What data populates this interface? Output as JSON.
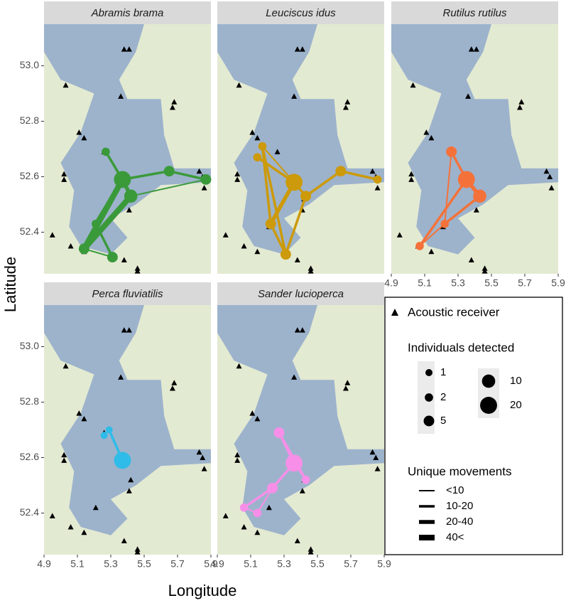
{
  "chart_data": {
    "type": "map",
    "xlabel": "Longitude",
    "ylabel": "Latitude",
    "xlim": [
      4.9,
      5.9
    ],
    "ylim": [
      52.25,
      53.15
    ],
    "xticks": [
      4.9,
      5.1,
      5.3,
      5.5,
      5.7,
      5.9
    ],
    "yticks": [
      52.4,
      52.6,
      52.8,
      {
        "value": 53,
        "label": "53.0"
      }
    ],
    "receivers": {
      "name": "Acoustic receiver",
      "lon": [
        5.38,
        5.41,
        5.03,
        5.36,
        5.68,
        5.67,
        5.11,
        5.14,
        5.26,
        5.02,
        5.02,
        5.83,
        5.85,
        5.86,
        5.42,
        5.41,
        5.21,
        4.95,
        5.06,
        5.14,
        5.38,
        5.46,
        5.46
      ],
      "lat": [
        53.06,
        53.06,
        52.93,
        52.89,
        52.87,
        52.85,
        52.76,
        52.74,
        52.69,
        52.61,
        52.59,
        52.62,
        52.6,
        52.56,
        52.52,
        52.48,
        52.42,
        52.39,
        52.35,
        52.33,
        52.3,
        52.27,
        52.26
      ]
    },
    "size_legend": {
      "title": "Individuals detected",
      "values": [
        1,
        2,
        5,
        10,
        20
      ]
    },
    "width_legend": {
      "title": "Unique movements",
      "labels": [
        "<10",
        "10-20",
        "20-40",
        "40<"
      ]
    },
    "facets": [
      {
        "title": "Abramis brama",
        "color": "#3a9a3a",
        "nodes": {
          "lon": [
            5.37,
            5.42,
            5.65,
            5.87,
            5.27,
            5.14,
            5.31,
            5.21
          ],
          "lat": [
            52.59,
            52.53,
            52.62,
            52.59,
            52.69,
            52.34,
            52.31,
            52.43
          ],
          "size": [
            20,
            10,
            5,
            5,
            2,
            5,
            5,
            2
          ]
        },
        "edges": {
          "from": [
            0,
            1,
            0,
            7,
            5,
            0,
            2,
            1,
            4,
            4,
            0
          ],
          "to": [
            5,
            5,
            7,
            6,
            6,
            2,
            3,
            3,
            0,
            1,
            1
          ],
          "class": [
            3,
            3,
            2,
            1,
            0,
            1,
            1,
            0,
            1,
            0,
            2
          ]
        }
      },
      {
        "title": "Leuciscus idus",
        "color": "#cc9a0a",
        "nodes": {
          "lon": [
            5.36,
            5.43,
            5.64,
            5.86,
            5.17,
            5.14,
            5.22,
            5.31
          ],
          "lat": [
            52.58,
            52.53,
            52.62,
            52.59,
            52.71,
            52.67,
            52.43,
            52.32
          ],
          "size": [
            20,
            5,
            5,
            2,
            2,
            2,
            5,
            5
          ]
        },
        "edges": {
          "from": [
            0,
            1,
            2,
            4,
            4,
            5,
            6,
            1,
            0,
            4
          ],
          "to": [
            6,
            2,
            3,
            6,
            7,
            0,
            7,
            7,
            1,
            0
          ],
          "class": [
            2,
            1,
            1,
            1,
            1,
            1,
            1,
            1,
            1,
            0
          ]
        }
      },
      {
        "title": "Rutilus rutilus",
        "color": "#f4723a",
        "nodes": {
          "lon": [
            5.35,
            5.43,
            5.26,
            5.22,
            5.07
          ],
          "lat": [
            52.59,
            52.53,
            52.69,
            52.43,
            52.35
          ],
          "size": [
            20,
            10,
            5,
            2,
            2
          ]
        },
        "edges": {
          "from": [
            0,
            1,
            2,
            2,
            0,
            3
          ],
          "to": [
            1,
            3,
            0,
            3,
            4,
            4
          ],
          "class": [
            2,
            1,
            1,
            0,
            1,
            0
          ]
        }
      },
      {
        "title": "Perca fluviatilis",
        "color": "#2fbce8",
        "nodes": {
          "lon": [
            5.37,
            5.29,
            5.26
          ],
          "lat": [
            52.59,
            52.7,
            52.68
          ],
          "size": [
            20,
            1,
            1
          ]
        },
        "edges": {
          "from": [
            0,
            2
          ],
          "to": [
            1,
            1
          ],
          "class": [
            1,
            0
          ]
        }
      },
      {
        "title": "Sander lucioperca",
        "color": "#f78fe8",
        "nodes": {
          "lon": [
            5.36,
            5.27,
            5.43,
            5.23,
            5.06,
            5.14
          ],
          "lat": [
            52.58,
            52.69,
            52.52,
            52.49,
            52.42,
            52.4
          ],
          "size": [
            20,
            5,
            2,
            5,
            2,
            2
          ]
        },
        "edges": {
          "from": [
            1,
            1,
            0,
            3,
            3,
            4,
            0
          ],
          "to": [
            0,
            2,
            3,
            4,
            5,
            5,
            2
          ],
          "class": [
            1,
            1,
            1,
            1,
            0,
            0,
            0
          ]
        }
      }
    ]
  }
}
